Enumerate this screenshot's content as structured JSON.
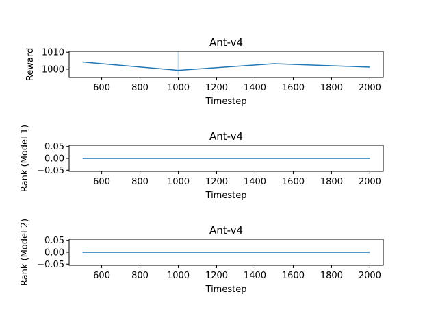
{
  "chart_data": [
    {
      "type": "line",
      "title": "Ant-v4",
      "xlabel": "Timestep",
      "ylabel": "Reward",
      "x": [
        500,
        1000,
        1500,
        2000
      ],
      "series": [
        {
          "values": [
            1004.2,
            999.3,
            1003.2,
            1001.2
          ]
        }
      ],
      "xlim": [
        430,
        2070
      ],
      "ylim": [
        995.1,
        1010.5
      ],
      "xticks": [
        600,
        800,
        1000,
        1200,
        1400,
        1600,
        1800,
        2000
      ],
      "xtick_labels": [
        "600",
        "800",
        "1000",
        "1200",
        "1400",
        "1600",
        "1800",
        "2000"
      ],
      "yticks": [
        1000,
        1010
      ],
      "ytick_labels": [
        "1000",
        "1010"
      ],
      "band": {
        "x": 1000,
        "y_low": 996.5,
        "y_high": 1010.5,
        "color": "#1f77b4"
      },
      "grid": false,
      "color": "#1f77b4"
    },
    {
      "type": "line",
      "title": "Ant-v4",
      "xlabel": "Timestep",
      "ylabel": "Rank (Model 1)",
      "x": [
        500,
        1000,
        1500,
        2000
      ],
      "series": [
        {
          "values": [
            0.0,
            0.0,
            0.0,
            0.0
          ]
        }
      ],
      "xlim": [
        430,
        2070
      ],
      "ylim": [
        -0.055,
        0.055
      ],
      "xticks": [
        600,
        800,
        1000,
        1200,
        1400,
        1600,
        1800,
        2000
      ],
      "xtick_labels": [
        "600",
        "800",
        "1000",
        "1200",
        "1400",
        "1600",
        "1800",
        "2000"
      ],
      "yticks": [
        0.05,
        0.0,
        -0.05
      ],
      "ytick_labels": [
        "0.05",
        "0.00",
        "−0.05"
      ],
      "grid": false,
      "color": "#1f77b4"
    },
    {
      "type": "line",
      "title": "Ant-v4",
      "xlabel": "Timestep",
      "ylabel": "Rank (Model 2)",
      "x": [
        500,
        1000,
        1500,
        2000
      ],
      "series": [
        {
          "values": [
            0.0,
            0.0,
            0.0,
            0.0
          ]
        }
      ],
      "xlim": [
        430,
        2070
      ],
      "ylim": [
        -0.055,
        0.055
      ],
      "xticks": [
        600,
        800,
        1000,
        1200,
        1400,
        1600,
        1800,
        2000
      ],
      "xtick_labels": [
        "600",
        "800",
        "1000",
        "1200",
        "1400",
        "1600",
        "1800",
        "2000"
      ],
      "yticks": [
        0.05,
        0.0,
        -0.05
      ],
      "ytick_labels": [
        "0.05",
        "0.00",
        "−0.05"
      ],
      "grid": false,
      "color": "#1f77b4"
    }
  ]
}
